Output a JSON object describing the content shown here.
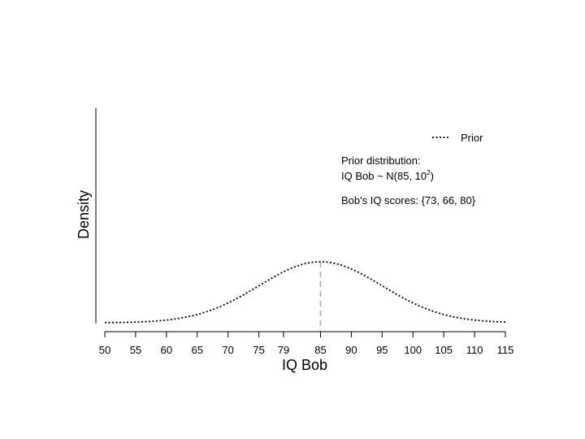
{
  "chart_data": {
    "type": "line",
    "title": "",
    "xlabel": "IQ Bob",
    "ylabel": "Density",
    "xlim": [
      50,
      115
    ],
    "x_ticks": [
      50,
      55,
      60,
      65,
      70,
      75,
      79,
      85,
      90,
      95,
      100,
      105,
      110,
      115
    ],
    "series": [
      {
        "name": "Prior",
        "distribution": "normal",
        "mean": 85,
        "sd": 10,
        "style": "dotted",
        "color": "#000000"
      }
    ],
    "reference_line": {
      "x": 85,
      "style": "dashed",
      "color": "#aaaaaa"
    },
    "legend": {
      "position": "top-right",
      "entries": [
        "Prior"
      ]
    },
    "grid": false,
    "annotations": {
      "prior_heading": "Prior distribution:",
      "prior_formula_prefix": "IQ Bob ~ N(85, 10",
      "prior_formula_exponent": "2",
      "prior_formula_suffix": ")",
      "scores_text": "Bob's IQ scores: {73, 66, 80}"
    }
  }
}
